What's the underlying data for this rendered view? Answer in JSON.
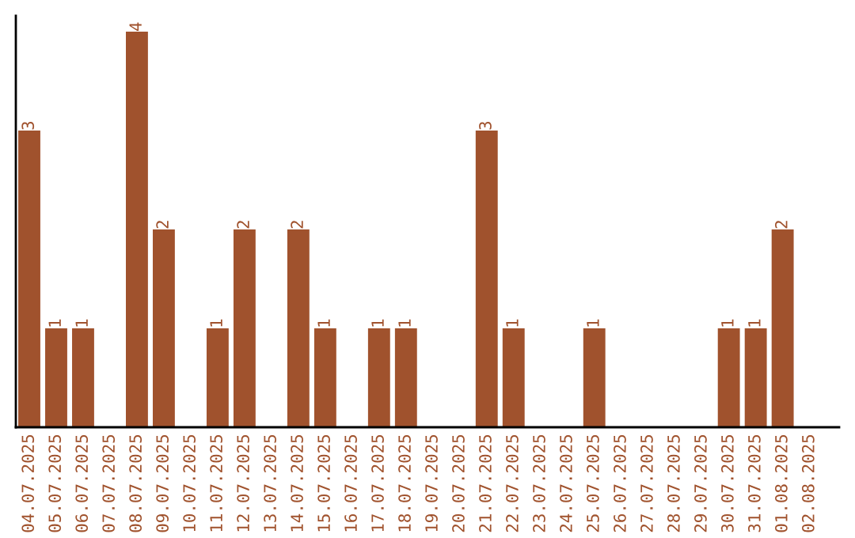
{
  "chart_data": {
    "type": "bar",
    "categories": [
      "04.07.2025",
      "05.07.2025",
      "06.07.2025",
      "07.07.2025",
      "08.07.2025",
      "09.07.2025",
      "10.07.2025",
      "11.07.2025",
      "12.07.2025",
      "13.07.2025",
      "14.07.2025",
      "15.07.2025",
      "16.07.2025",
      "17.07.2025",
      "18.07.2025",
      "19.07.2025",
      "20.07.2025",
      "21.07.2025",
      "22.07.2025",
      "23.07.2025",
      "24.07.2025",
      "25.07.2025",
      "26.07.2025",
      "27.07.2025",
      "28.07.2025",
      "29.07.2025",
      "30.07.2025",
      "31.07.2025",
      "01.08.2025",
      "02.08.2025"
    ],
    "values": [
      3,
      1,
      1,
      0,
      4,
      2,
      0,
      1,
      2,
      0,
      2,
      1,
      0,
      1,
      1,
      0,
      0,
      3,
      1,
      0,
      0,
      1,
      0,
      0,
      0,
      0,
      1,
      1,
      2,
      0
    ],
    "value_labels": [
      "3",
      "1",
      "1",
      null,
      "4",
      "2",
      null,
      "1",
      "2",
      null,
      "2",
      "1",
      null,
      "1",
      "1",
      null,
      null,
      "3",
      "1",
      null,
      null,
      "1",
      null,
      null,
      null,
      null,
      "1",
      "1",
      "2",
      null
    ],
    "color": "#a0522d",
    "tick_labels": "x",
    "grid": false,
    "legend": false
  }
}
